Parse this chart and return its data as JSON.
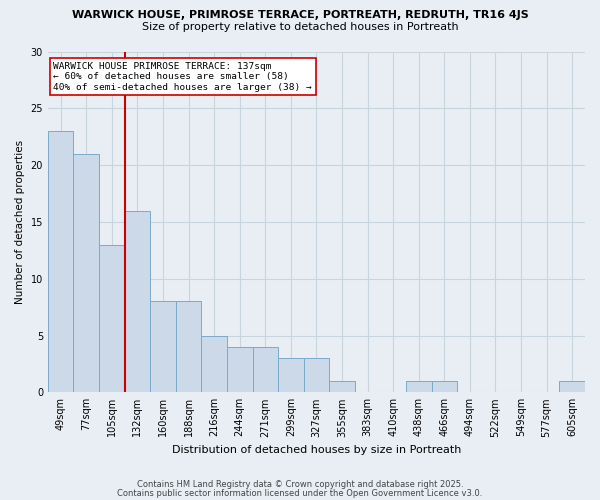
{
  "title_line1": "WARWICK HOUSE, PRIMROSE TERRACE, PORTREATH, REDRUTH, TR16 4JS",
  "title_line2": "Size of property relative to detached houses in Portreath",
  "xlabel": "Distribution of detached houses by size in Portreath",
  "ylabel": "Number of detached properties",
  "categories": [
    "49sqm",
    "77sqm",
    "105sqm",
    "132sqm",
    "160sqm",
    "188sqm",
    "216sqm",
    "244sqm",
    "271sqm",
    "299sqm",
    "327sqm",
    "355sqm",
    "383sqm",
    "410sqm",
    "438sqm",
    "466sqm",
    "494sqm",
    "522sqm",
    "549sqm",
    "577sqm",
    "605sqm"
  ],
  "values": [
    23,
    21,
    13,
    16,
    8,
    8,
    5,
    4,
    4,
    3,
    3,
    1,
    0,
    0,
    1,
    1,
    0,
    0,
    0,
    0,
    1
  ],
  "bar_color": "#ccd9e8",
  "bar_edge_color": "#7aaaca",
  "vline_color": "#cc0000",
  "annotation_title": "WARWICK HOUSE PRIMROSE TERRACE: 137sqm",
  "annotation_line2": "← 60% of detached houses are smaller (58)",
  "annotation_line3": "40% of semi-detached houses are larger (38) →",
  "annotation_box_color": "white",
  "annotation_box_edge": "#cc0000",
  "ylim": [
    0,
    30
  ],
  "yticks": [
    0,
    5,
    10,
    15,
    20,
    25,
    30
  ],
  "footnote1": "Contains HM Land Registry data © Crown copyright and database right 2025.",
  "footnote2": "Contains public sector information licensed under the Open Government Licence v3.0.",
  "background_color": "#e8eef4",
  "grid_color": "#c8d4de"
}
